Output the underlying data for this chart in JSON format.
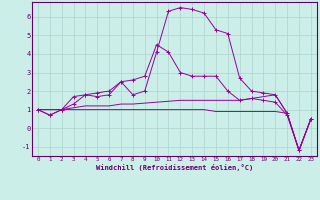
{
  "xlabel": "Windchill (Refroidissement éolien,°C)",
  "background_color": "#cceee8",
  "grid_color": "#aad4cc",
  "line_color": "#990099",
  "spine_color": "#660066",
  "tick_color": "#660066",
  "hours": [
    0,
    1,
    2,
    3,
    4,
    5,
    6,
    7,
    8,
    9,
    10,
    11,
    12,
    13,
    14,
    15,
    16,
    17,
    18,
    19,
    20,
    21,
    22,
    23
  ],
  "series1": [
    1.0,
    0.7,
    1.0,
    1.7,
    1.8,
    1.9,
    2.0,
    2.5,
    1.8,
    2.0,
    4.1,
    6.3,
    6.5,
    6.4,
    6.2,
    5.3,
    5.1,
    2.7,
    2.0,
    1.9,
    1.8,
    0.8,
    -1.2,
    0.5
  ],
  "series2": [
    1.0,
    0.7,
    1.0,
    1.3,
    1.8,
    1.7,
    1.8,
    2.5,
    2.6,
    2.8,
    4.5,
    4.1,
    3.0,
    2.8,
    2.8,
    2.8,
    2.0,
    1.5,
    1.6,
    1.5,
    1.4,
    0.7,
    -1.2,
    0.5
  ],
  "series3": [
    1.0,
    1.0,
    1.0,
    1.1,
    1.2,
    1.2,
    1.2,
    1.3,
    1.3,
    1.35,
    1.4,
    1.45,
    1.5,
    1.5,
    1.5,
    1.5,
    1.5,
    1.5,
    1.6,
    1.7,
    1.8,
    0.8,
    -1.2,
    0.5
  ],
  "series4": [
    1.0,
    1.0,
    1.0,
    1.0,
    1.0,
    1.0,
    1.0,
    1.0,
    1.0,
    1.0,
    1.0,
    1.0,
    1.0,
    1.0,
    1.0,
    0.9,
    0.9,
    0.9,
    0.9,
    0.9,
    0.9,
    0.8,
    -1.2,
    0.5
  ],
  "ylim": [
    -1.5,
    6.8
  ],
  "yticks": [
    -1,
    0,
    1,
    2,
    3,
    4,
    5,
    6
  ],
  "marker": "+",
  "marker_size": 3,
  "linewidth": 0.7
}
